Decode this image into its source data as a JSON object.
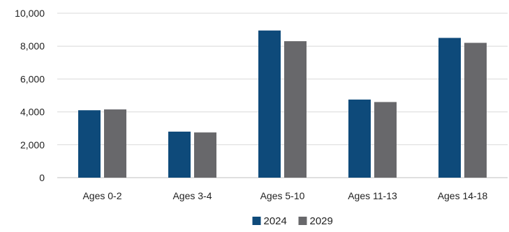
{
  "chart_data": {
    "type": "bar",
    "categories": [
      "Ages 0-2",
      "Ages 3-4",
      "Ages 5-10",
      "Ages 11-13",
      "Ages 14-18"
    ],
    "series": [
      {
        "name": "2024",
        "color": "#0E4A7A",
        "values": [
          4100,
          2800,
          8950,
          4750,
          8500
        ]
      },
      {
        "name": "2029",
        "color": "#68686B",
        "values": [
          4150,
          2750,
          8300,
          4600,
          8200
        ]
      }
    ],
    "ylim": [
      0,
      10000
    ],
    "yticks": [
      0,
      2000,
      4000,
      6000,
      8000,
      10000
    ],
    "ytick_labels": [
      "0",
      "2,000",
      "4,000",
      "6,000",
      "8,000",
      "10,000"
    ],
    "grid": true,
    "legend_position": "bottom"
  }
}
